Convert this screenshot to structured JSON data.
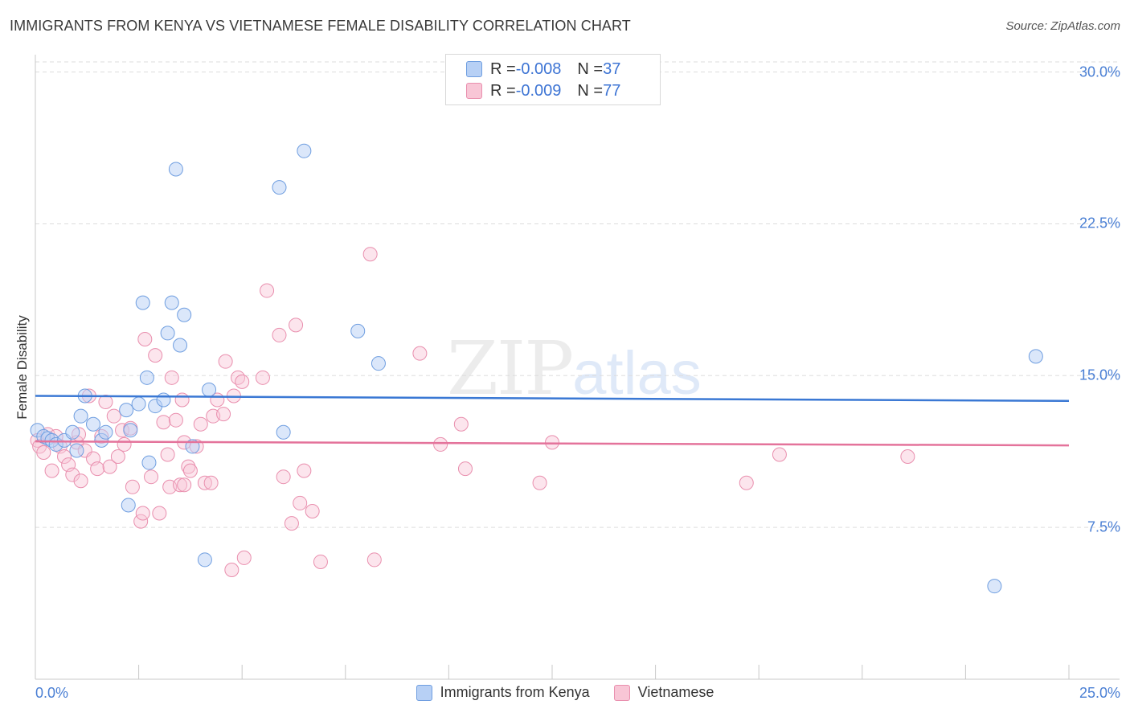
{
  "title": "IMMIGRANTS FROM KENYA VS VIETNAMESE FEMALE DISABILITY CORRELATION CHART",
  "source": "Source: ZipAtlas.com",
  "watermark": {
    "part1": "ZIP",
    "part2": "atlas"
  },
  "stats": [
    {
      "r_label": "R = ",
      "r_value": "-0.008",
      "n_label": "N = ",
      "n_value": "37"
    },
    {
      "r_label": "R = ",
      "r_value": "-0.009",
      "n_label": "N = ",
      "n_value": "77"
    }
  ],
  "colors": {
    "kenya_fill": "#b7d0f5",
    "kenya_stroke": "#6f9ee0",
    "kenya_line": "#3a78d4",
    "viet_fill": "#f8c6d6",
    "viet_stroke": "#e98fae",
    "viet_line": "#e4739b",
    "grid": "#dddddd",
    "axis_label": "#4a7fd4"
  },
  "chart_data": {
    "type": "scatter",
    "title": "IMMIGRANTS FROM KENYA VS VIETNAMESE FEMALE DISABILITY CORRELATION CHART",
    "xlabel": "",
    "ylabel": "Female Disability",
    "xlim": [
      0,
      25
    ],
    "ylim": [
      0,
      30.5
    ],
    "x_tick_labels": [
      "0.0%",
      "25.0%"
    ],
    "y_tick_labels": [
      "30.0%",
      "22.5%",
      "15.0%",
      "7.5%"
    ],
    "y_ticks": [
      30.0,
      22.5,
      15.0,
      7.5
    ],
    "legend_position": "bottom-center",
    "series": [
      {
        "name": "Immigrants from Kenya",
        "trend": [
          [
            0,
            14.0
          ],
          [
            25,
            13.75
          ]
        ],
        "points": [
          [
            0.05,
            12.3
          ],
          [
            0.2,
            12.0
          ],
          [
            0.3,
            11.9
          ],
          [
            0.4,
            11.8
          ],
          [
            0.5,
            11.6
          ],
          [
            0.7,
            11.8
          ],
          [
            0.9,
            12.2
          ],
          [
            1.1,
            13.0
          ],
          [
            1.2,
            14.0
          ],
          [
            1.4,
            12.6
          ],
          [
            1.6,
            11.8
          ],
          [
            1.7,
            12.2
          ],
          [
            1.0,
            11.3
          ],
          [
            2.2,
            13.3
          ],
          [
            2.3,
            12.3
          ],
          [
            2.25,
            8.6
          ],
          [
            2.5,
            13.6
          ],
          [
            2.6,
            18.6
          ],
          [
            2.7,
            14.9
          ],
          [
            2.9,
            13.5
          ],
          [
            3.1,
            13.8
          ],
          [
            3.2,
            17.1
          ],
          [
            3.3,
            18.6
          ],
          [
            3.4,
            25.2
          ],
          [
            3.5,
            16.5
          ],
          [
            3.6,
            18.0
          ],
          [
            3.8,
            11.5
          ],
          [
            4.1,
            5.9
          ],
          [
            4.2,
            14.3
          ],
          [
            5.9,
            24.3
          ],
          [
            6.0,
            12.2
          ],
          [
            6.5,
            26.1
          ],
          [
            7.8,
            17.2
          ],
          [
            8.3,
            15.6
          ],
          [
            2.75,
            10.7
          ],
          [
            24.2,
            15.95
          ],
          [
            23.2,
            4.6
          ]
        ]
      },
      {
        "name": "Vietnamese",
        "trend": [
          [
            0,
            11.75
          ],
          [
            25,
            11.55
          ]
        ],
        "points": [
          [
            0.05,
            11.8
          ],
          [
            0.1,
            11.5
          ],
          [
            0.2,
            11.2
          ],
          [
            0.3,
            12.1
          ],
          [
            0.4,
            10.3
          ],
          [
            0.5,
            12.0
          ],
          [
            0.6,
            11.5
          ],
          [
            0.7,
            11.0
          ],
          [
            0.8,
            10.6
          ],
          [
            0.9,
            10.1
          ],
          [
            1.0,
            11.7
          ],
          [
            1.05,
            12.1
          ],
          [
            1.1,
            9.8
          ],
          [
            1.2,
            11.3
          ],
          [
            1.3,
            14.0
          ],
          [
            1.4,
            10.9
          ],
          [
            1.5,
            10.4
          ],
          [
            1.6,
            12.0
          ],
          [
            1.7,
            13.7
          ],
          [
            1.8,
            10.5
          ],
          [
            1.9,
            13.0
          ],
          [
            2.0,
            11.0
          ],
          [
            2.1,
            12.3
          ],
          [
            2.15,
            11.6
          ],
          [
            2.3,
            12.4
          ],
          [
            2.35,
            9.5
          ],
          [
            2.55,
            7.8
          ],
          [
            2.6,
            8.2
          ],
          [
            2.65,
            16.8
          ],
          [
            2.8,
            10.0
          ],
          [
            2.9,
            16.0
          ],
          [
            3.0,
            8.2
          ],
          [
            3.1,
            12.7
          ],
          [
            3.2,
            11.1
          ],
          [
            3.25,
            9.5
          ],
          [
            3.3,
            14.9
          ],
          [
            3.4,
            12.8
          ],
          [
            3.5,
            9.6
          ],
          [
            3.55,
            13.8
          ],
          [
            3.6,
            11.7
          ],
          [
            3.7,
            10.5
          ],
          [
            3.75,
            10.3
          ],
          [
            3.9,
            11.5
          ],
          [
            4.0,
            12.6
          ],
          [
            4.1,
            9.7
          ],
          [
            4.25,
            9.7
          ],
          [
            4.3,
            13.0
          ],
          [
            4.4,
            13.8
          ],
          [
            4.55,
            13.1
          ],
          [
            4.6,
            15.7
          ],
          [
            4.8,
            14.0
          ],
          [
            4.9,
            14.9
          ],
          [
            5.0,
            14.7
          ],
          [
            4.75,
            5.4
          ],
          [
            5.05,
            6.0
          ],
          [
            5.5,
            14.9
          ],
          [
            5.6,
            19.2
          ],
          [
            5.9,
            17.0
          ],
          [
            6.0,
            10.0
          ],
          [
            6.2,
            7.7
          ],
          [
            6.3,
            17.5
          ],
          [
            6.4,
            8.7
          ],
          [
            6.5,
            10.3
          ],
          [
            6.7,
            8.3
          ],
          [
            6.9,
            5.8
          ],
          [
            8.1,
            21.0
          ],
          [
            8.2,
            5.9
          ],
          [
            9.3,
            16.1
          ],
          [
            9.8,
            11.6
          ],
          [
            10.3,
            12.6
          ],
          [
            10.4,
            10.4
          ],
          [
            12.2,
            9.7
          ],
          [
            12.5,
            11.7
          ],
          [
            17.2,
            9.7
          ],
          [
            18.0,
            11.1
          ],
          [
            21.1,
            11.0
          ],
          [
            3.6,
            9.6
          ]
        ]
      }
    ]
  },
  "legend": [
    {
      "label": "Immigrants from Kenya"
    },
    {
      "label": "Vietnamese"
    }
  ]
}
